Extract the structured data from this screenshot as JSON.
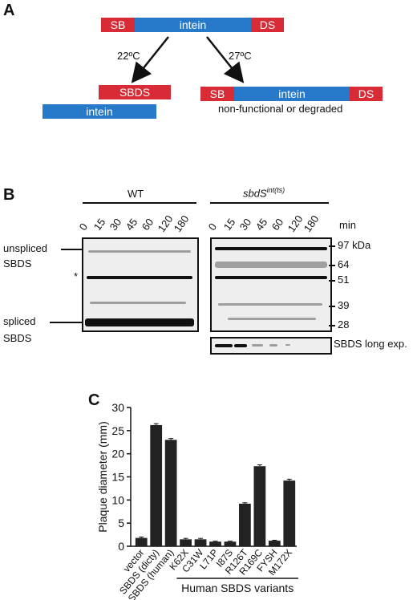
{
  "panelA": {
    "letter": "A",
    "top_construct": {
      "left": "SB",
      "middle": "intein",
      "right": "DS"
    },
    "left_temp": "22ºC",
    "right_temp": "27ºC",
    "left_products": {
      "sbds": "SBDS",
      "intein": "intein"
    },
    "right_product": {
      "left": "SB",
      "middle": "intein",
      "right": "DS"
    },
    "right_caption": "non-functional or degraded"
  },
  "panelB": {
    "letter": "B",
    "wt_label": "WT",
    "mutant_label_main": "sbdS",
    "mutant_label_sup": "int(ts)",
    "timepoints": [
      "0",
      "15",
      "30",
      "45",
      "60",
      "120",
      "180"
    ],
    "min_label": "min",
    "left_labels": {
      "unspliced": "unspliced",
      "sbds1": "SBDS",
      "star": "*",
      "spliced": "spliced",
      "sbds2": "SBDS"
    },
    "mw_markers": [
      "97 kDa",
      "64",
      "51",
      "39",
      "28"
    ],
    "long_exp_label": "SBDS long exp."
  },
  "panelC": {
    "letter": "C",
    "group_label": "Human SBDS variants",
    "chart_data": {
      "type": "bar",
      "categories": [
        "vector",
        "SBDS (dicty)",
        "SBDS (human)",
        "K62X",
        "C31W",
        "L71P",
        "I87S",
        "R126T",
        "R169C",
        "FYSH",
        "M172X"
      ],
      "values": [
        1.8,
        26.2,
        23,
        1.5,
        1.5,
        1,
        1,
        9.2,
        17.3,
        1.2,
        14.2
      ],
      "errors": [
        0.2,
        0.3,
        0.3,
        0.2,
        0.2,
        0.1,
        0.1,
        0.2,
        0.3,
        0.1,
        0.3
      ],
      "ylabel": "Plaque diameter (mm)",
      "xlabel": "",
      "ylim": [
        0,
        30
      ],
      "yticks": [
        0,
        5,
        10,
        15,
        20,
        25,
        30
      ],
      "bar_color": "#222222"
    }
  }
}
